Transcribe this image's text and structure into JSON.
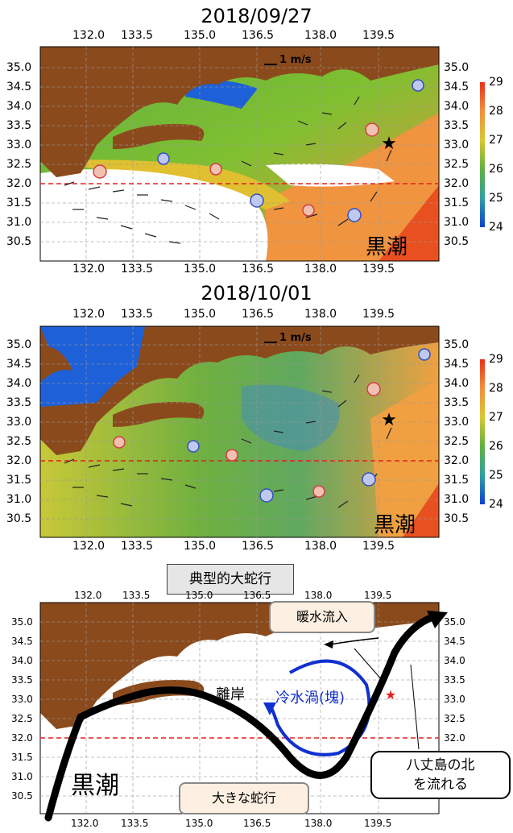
{
  "panels": [
    {
      "date": "2018/09/27",
      "current_label": "黒潮",
      "scale_label": "1 m/s"
    },
    {
      "date": "2018/10/01",
      "current_label": "黒潮",
      "scale_label": "1 m/s"
    }
  ],
  "lon_ticks": [
    "132.0",
    "133.5",
    "135.0",
    "136.5",
    "138.0",
    "139.5"
  ],
  "lat_ticks": [
    "35.0",
    "34.5",
    "34.0",
    "33.5",
    "33.0",
    "32.5",
    "32.0",
    "31.5",
    "31.0",
    "30.5"
  ],
  "colorbar_ticks": [
    "29",
    "28",
    "27",
    "26",
    "25",
    "24"
  ],
  "colors": {
    "land": "#8b4a1c",
    "cold": "#1060d8",
    "warm": "#f08030",
    "hot": "#e84020",
    "mid": "#6cb040",
    "ref_line": "#e02020"
  },
  "schematic": {
    "title": "典型的大蛇行",
    "warm_inflow": "暖水流入",
    "offshore": "離岸",
    "cold_eddy": "冷水渦(塊)",
    "kuroshio": "黒潮",
    "big_meander": "大きな蛇行",
    "hachijo_note_line1": "八丈島の北",
    "hachijo_note_line2": "を流れる"
  }
}
